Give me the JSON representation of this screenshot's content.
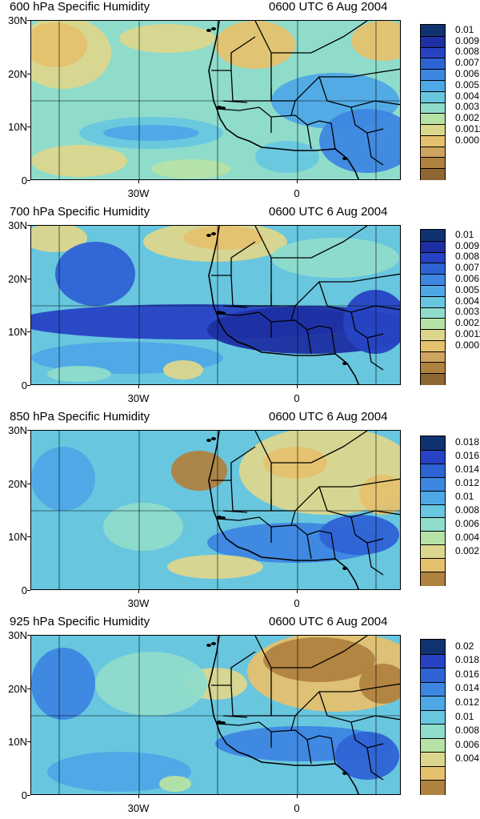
{
  "panels": [
    {
      "title": "600 hPa Specific Humidity",
      "time": "0600 UTC 6 Aug 2004",
      "lat_labels": [
        "30N",
        "20N",
        "10N",
        "0"
      ],
      "lon_labels": [
        "30W",
        "0"
      ],
      "colorbar": {
        "labels": [
          "0.01",
          "0.0091",
          "0.0081",
          "0.0071",
          "0.0061",
          "0.0051",
          "0.0041",
          "0.0031",
          "0.0021",
          "0.0011",
          "0.0001"
        ],
        "colors": [
          "#0f3270",
          "#1d2fa2",
          "#2743c3",
          "#2e63d4",
          "#3d86e1",
          "#4fa8e6",
          "#68c6df",
          "#8fdccb",
          "#b6e2a5",
          "#dcd68d",
          "#e5c16e",
          "#cfa45f",
          "#b08240",
          "#8e6633"
        ]
      },
      "map_style": "moist-mid"
    },
    {
      "title": "700 hPa Specific Humidity",
      "time": "0600 UTC 6 Aug 2004",
      "lat_labels": [
        "30N",
        "20N",
        "10N",
        "0"
      ],
      "lon_labels": [
        "30W",
        "0"
      ],
      "colorbar": {
        "labels": [
          "0.01",
          "0.0091",
          "0.0081",
          "0.0071",
          "0.0061",
          "0.0051",
          "0.0041",
          "0.0031",
          "0.0021",
          "0.0011",
          "0.0001"
        ],
        "colors": [
          "#0f3270",
          "#1d2fa2",
          "#2743c3",
          "#2e63d4",
          "#3d86e1",
          "#4fa8e6",
          "#68c6df",
          "#8fdccb",
          "#b6e2a5",
          "#dcd68d",
          "#e5c16e",
          "#cfa45f",
          "#b08240",
          "#8e6633"
        ]
      },
      "map_style": "moist-high"
    },
    {
      "title": "850 hPa Specific Humidity",
      "time": "0600 UTC 6 Aug 2004",
      "lat_labels": [
        "30N",
        "20N",
        "10N",
        "0"
      ],
      "lon_labels": [
        "30W",
        "0"
      ],
      "colorbar": {
        "labels": [
          "0.018",
          "0.016",
          "0.014",
          "0.012",
          "0.01",
          "0.008",
          "0.006",
          "0.004",
          "0.002"
        ],
        "colors": [
          "#0f3270",
          "#2743c3",
          "#2e63d4",
          "#3d86e1",
          "#4fa8e6",
          "#68c6df",
          "#8fdccb",
          "#b6e2a5",
          "#dcd68d",
          "#e5c16e",
          "#b08240"
        ]
      },
      "map_style": "dry-north"
    },
    {
      "title": "925 hPa Specific Humidity",
      "time": "0600 UTC 6 Aug 2004",
      "lat_labels": [
        "30N",
        "20N",
        "10N",
        "0"
      ],
      "lon_labels": [
        "30W",
        "0"
      ],
      "colorbar": {
        "labels": [
          "0.02",
          "0.018",
          "0.016",
          "0.014",
          "0.012",
          "0.01",
          "0.008",
          "0.006",
          "0.004"
        ],
        "colors": [
          "#0f3270",
          "#2743c3",
          "#2e63d4",
          "#3d86e1",
          "#4fa8e6",
          "#68c6df",
          "#8fdccb",
          "#b6e2a5",
          "#dcd68d",
          "#e5c16e",
          "#b08240"
        ]
      },
      "map_style": "very-dry-north"
    }
  ]
}
